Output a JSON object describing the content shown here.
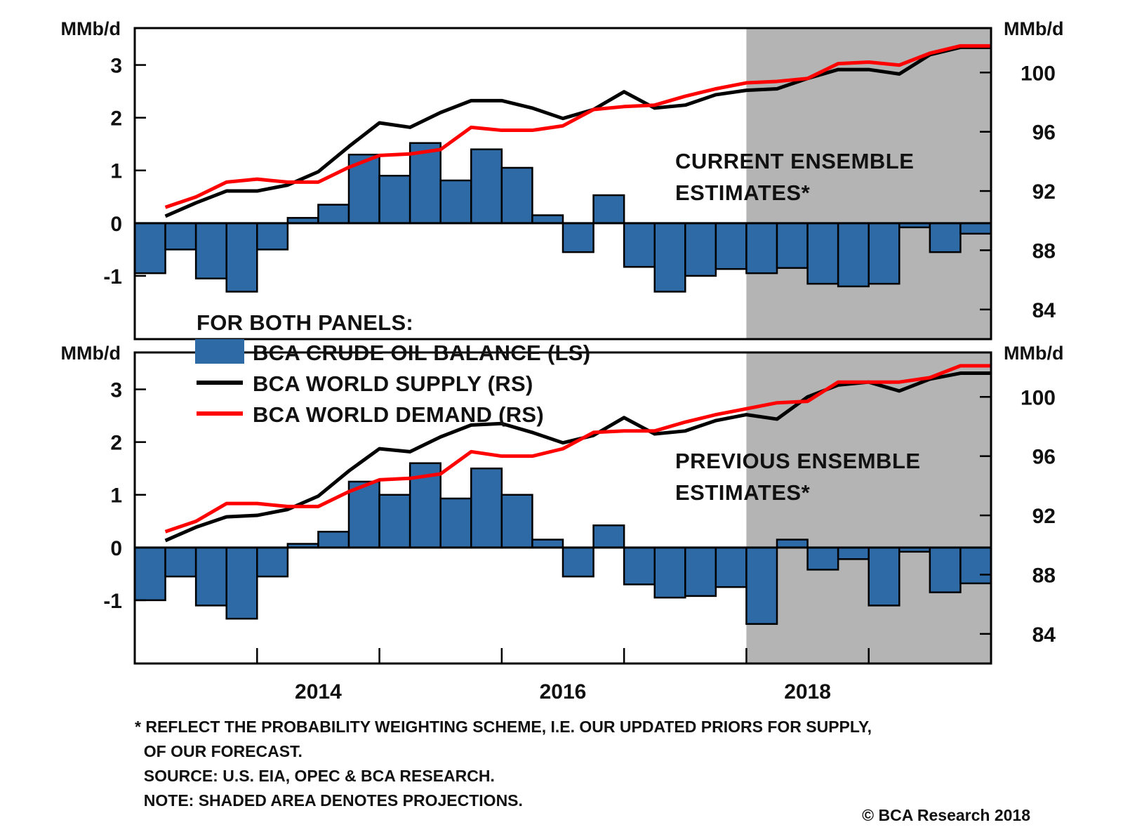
{
  "chart_data": [
    {
      "type": "bar+line",
      "panel": "top",
      "annotation": [
        "CURRENT ENSEMBLE",
        "ESTIMATES*"
      ],
      "left_axis": {
        "label": "MMb/d",
        "ticks": [
          -1,
          0,
          1,
          2,
          3
        ],
        "range": [
          -2.2,
          3.7
        ]
      },
      "right_axis": {
        "label": "MMb/d",
        "ticks": [
          84,
          88,
          92,
          96,
          100
        ],
        "range": [
          82,
          103
        ]
      },
      "x": [
        "2013Q1",
        "2013Q2",
        "2013Q3",
        "2013Q4",
        "2014Q1",
        "2014Q2",
        "2014Q3",
        "2014Q4",
        "2015Q1",
        "2015Q2",
        "2015Q3",
        "2015Q4",
        "2016Q1",
        "2016Q2",
        "2016Q3",
        "2016Q4",
        "2017Q1",
        "2017Q2",
        "2017Q3",
        "2017Q4",
        "2018Q1",
        "2018Q2",
        "2018Q3",
        "2018Q4",
        "2019Q1",
        "2019Q2",
        "2019Q3",
        "2019Q4"
      ],
      "series": [
        {
          "name": "BCA CRUDE OIL BALANCE (LS)",
          "kind": "bar",
          "axis": "left",
          "values": [
            -0.95,
            -0.5,
            -1.05,
            -1.3,
            -0.5,
            0.1,
            0.35,
            1.3,
            0.9,
            1.52,
            0.81,
            1.4,
            1.05,
            0.15,
            -0.55,
            0.53,
            -0.83,
            -1.3,
            -1.0,
            -0.87,
            -0.95,
            -0.85,
            -1.15,
            -1.2,
            -1.15,
            -0.08,
            -0.55,
            -0.2
          ]
        },
        {
          "name": "BCA WORLD SUPPLY (RS)",
          "kind": "line",
          "axis": "right",
          "values": [
            null,
            90.3,
            91.2,
            92.0,
            92.0,
            92.4,
            93.3,
            95.0,
            96.6,
            96.3,
            97.3,
            98.1,
            98.1,
            97.6,
            96.9,
            97.5,
            98.7,
            97.6,
            97.8,
            98.5,
            98.8,
            98.9,
            99.6,
            100.2,
            100.2,
            99.9,
            101.2,
            101.7
          ]
        },
        {
          "name": "BCA WORLD DEMAND (RS)",
          "kind": "line",
          "axis": "right",
          "values": [
            null,
            90.9,
            91.6,
            92.6,
            92.8,
            92.6,
            92.6,
            93.6,
            94.4,
            94.5,
            94.8,
            96.3,
            96.1,
            96.1,
            96.4,
            97.5,
            97.7,
            97.8,
            98.4,
            98.9,
            99.3,
            99.4,
            99.6,
            100.6,
            100.7,
            100.5,
            101.3,
            101.8
          ]
        }
      ],
      "shaded_from": "2018Q1"
    },
    {
      "type": "bar+line",
      "panel": "bottom",
      "annotation": [
        "PREVIOUS ENSEMBLE",
        "ESTIMATES*"
      ],
      "left_axis": {
        "label": "MMb/d",
        "ticks": [
          -1,
          0,
          1,
          2,
          3
        ],
        "range": [
          -2.2,
          3.7
        ]
      },
      "right_axis": {
        "label": "MMb/d",
        "ticks": [
          84,
          88,
          92,
          96,
          100
        ],
        "range": [
          82,
          103
        ]
      },
      "x": [
        "2013Q1",
        "2013Q2",
        "2013Q3",
        "2013Q4",
        "2014Q1",
        "2014Q2",
        "2014Q3",
        "2014Q4",
        "2015Q1",
        "2015Q2",
        "2015Q3",
        "2015Q4",
        "2016Q1",
        "2016Q2",
        "2016Q3",
        "2016Q4",
        "2017Q1",
        "2017Q2",
        "2017Q3",
        "2017Q4",
        "2018Q1",
        "2018Q2",
        "2018Q3",
        "2018Q4",
        "2019Q1",
        "2019Q2",
        "2019Q3",
        "2019Q4"
      ],
      "series": [
        {
          "name": "BCA CRUDE OIL BALANCE (LS)",
          "kind": "bar",
          "axis": "left",
          "values": [
            -1.0,
            -0.55,
            -1.1,
            -1.35,
            -0.55,
            0.07,
            0.3,
            1.25,
            1.0,
            1.6,
            0.93,
            1.5,
            1.0,
            0.15,
            -0.55,
            0.42,
            -0.7,
            -0.95,
            -0.92,
            -0.75,
            -1.45,
            0.15,
            -0.42,
            -0.22,
            -1.1,
            -0.08,
            -0.85,
            -0.68
          ]
        },
        {
          "name": "BCA WORLD SUPPLY (RS)",
          "kind": "line",
          "axis": "right",
          "values": [
            null,
            90.3,
            91.2,
            91.9,
            92.0,
            92.4,
            93.3,
            95.0,
            96.5,
            96.3,
            97.3,
            98.1,
            98.2,
            97.6,
            96.9,
            97.4,
            98.6,
            97.5,
            97.7,
            98.4,
            98.8,
            98.5,
            100.0,
            100.8,
            101.0,
            100.4,
            101.2,
            101.6
          ]
        },
        {
          "name": "BCA WORLD DEMAND (RS)",
          "kind": "line",
          "axis": "right",
          "values": [
            null,
            90.9,
            91.6,
            92.8,
            92.8,
            92.6,
            92.6,
            93.6,
            94.4,
            94.5,
            94.8,
            96.3,
            96.0,
            96.0,
            96.5,
            97.6,
            97.7,
            97.7,
            98.3,
            98.8,
            99.2,
            99.6,
            99.7,
            101.0,
            101.0,
            101.0,
            101.3,
            102.1
          ]
        }
      ],
      "shaded_from": "2018Q1"
    }
  ],
  "x_axis": {
    "year_labels": [
      "2014",
      "2016",
      "2018"
    ]
  },
  "legend": {
    "title": "FOR BOTH PANELS:",
    "items": [
      {
        "label": "BCA CRUDE OIL BALANCE (LS)",
        "swatch": "bar",
        "color": "#2e6aa5"
      },
      {
        "label": "BCA WORLD SUPPLY (RS)",
        "swatch": "line",
        "color": "#000000"
      },
      {
        "label": "BCA WORLD DEMAND (RS)",
        "swatch": "line",
        "color": "#ff0000"
      }
    ]
  },
  "colors": {
    "bar": "#2e6aa5",
    "supply": "#000000",
    "demand": "#ff0000",
    "shade": "#b4b4b4"
  },
  "footer": {
    "lines": [
      "* REFLECT THE PROBABILITY WEIGHTING SCHEME, I.E. OUR UPDATED PRIORS FOR SUPPLY,",
      "  OF OUR FORECAST.",
      "  SOURCE: U.S. EIA, OPEC & BCA RESEARCH.",
      "  NOTE: SHADED AREA DENOTES PROJECTIONS."
    ],
    "copyright": "© BCA Research 2018"
  }
}
